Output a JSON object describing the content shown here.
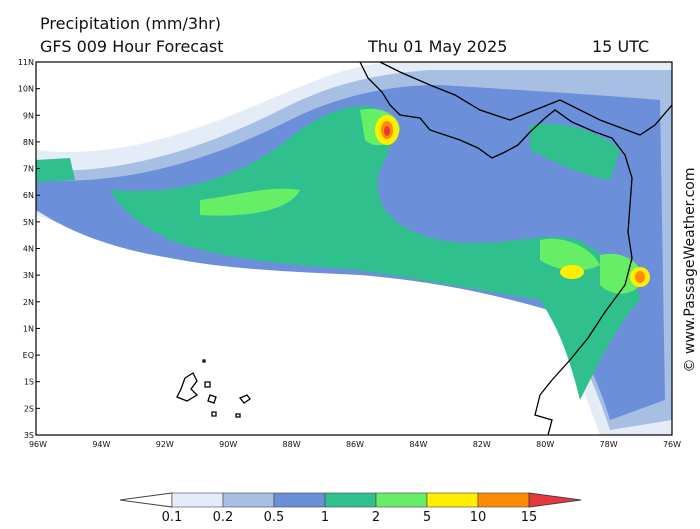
{
  "header": {
    "title": "Precipitation (mm/3hr)",
    "model": "GFS 009 Hour Forecast",
    "date": "Thu 01 May 2025",
    "time": "15 UTC"
  },
  "map": {
    "lat_labels": [
      "11N",
      "10N",
      "9N",
      "8N",
      "7N",
      "6N",
      "5N",
      "4N",
      "3N",
      "2N",
      "1N",
      "EQ",
      "1S",
      "2S",
      "3S"
    ],
    "lon_labels": [
      "96W",
      "94W",
      "92W",
      "90W",
      "88W",
      "86W",
      "84W",
      "82W",
      "80W",
      "78W",
      "76W"
    ],
    "credit": "© www.PassageWeather.com"
  },
  "legend": {
    "labels": [
      "0.1",
      "0.2",
      "0.5",
      "1",
      "2",
      "5",
      "10",
      "15"
    ],
    "colors": [
      "#ffffff",
      "#e4ecf7",
      "#a7bfe2",
      "#6b8fd9",
      "#30c08e",
      "#66ee66",
      "#ffee00",
      "#ff8c00",
      "#e8373c"
    ]
  }
}
